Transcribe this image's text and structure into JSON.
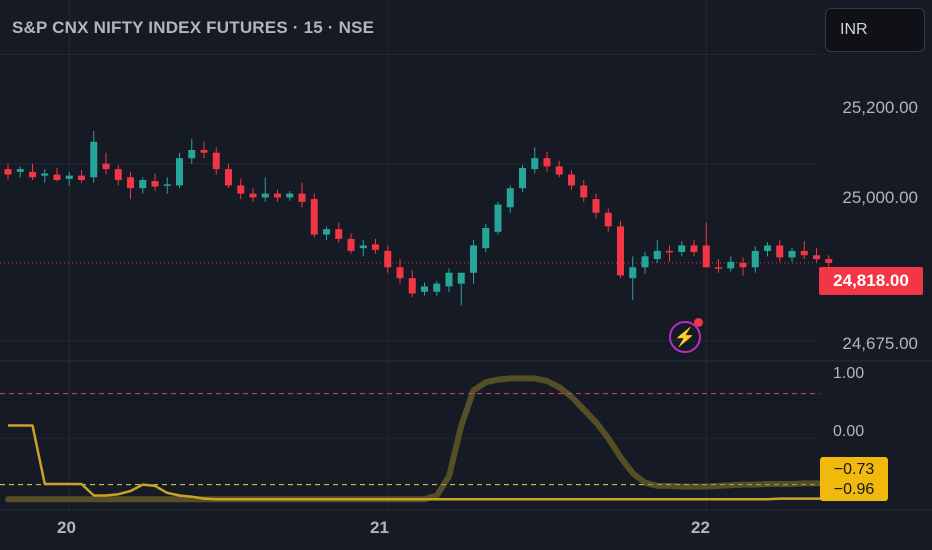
{
  "header": {
    "title": "S&P CNX NIFTY INDEX FUTURES · 15 · NSE"
  },
  "currency_button": {
    "label": "INR"
  },
  "price_axis": {
    "labels": [
      "25,200.00",
      "25,000.00",
      "24,675.00"
    ]
  },
  "last_price": {
    "label": "24,818.00",
    "value": 24818
  },
  "indicator_axis": {
    "labels": [
      "1.00",
      "0.00"
    ]
  },
  "indicator_tag": {
    "value": "−0.73",
    "value2": "−0.96"
  },
  "time_axis": {
    "labels": [
      "20",
      "21",
      "22"
    ]
  },
  "colors": {
    "background": "#161a25",
    "up": "#26a69a",
    "down": "#f23645",
    "indicator": "#f0b90b",
    "alert": "#b62cc5"
  },
  "chart_data": {
    "type": "candlestick",
    "title": "S&P CNX NIFTY INDEX FUTURES · 15 · NSE",
    "price_range": [
      24640,
      25300
    ],
    "last_price": 24818,
    "x_tick_labels": [
      "20",
      "21",
      "22"
    ],
    "y_tick_labels": [
      "25,200.00",
      "25,000.00",
      "24,675.00"
    ],
    "candles": [
      [
        24990,
        25000,
        24970,
        24980
      ],
      [
        24985,
        24995,
        24975,
        24990
      ],
      [
        24985,
        25000,
        24970,
        24975
      ],
      [
        24978,
        24990,
        24965,
        24982
      ],
      [
        24980,
        24992,
        24968,
        24970
      ],
      [
        24972,
        24985,
        24960,
        24978
      ],
      [
        24978,
        24988,
        24965,
        24970
      ],
      [
        24975,
        25060,
        24965,
        25040
      ],
      [
        25000,
        25020,
        24980,
        24990
      ],
      [
        24990,
        24998,
        24960,
        24970
      ],
      [
        24975,
        24985,
        24935,
        24955
      ],
      [
        24955,
        24975,
        24945,
        24970
      ],
      [
        24968,
        24982,
        24950,
        24958
      ],
      [
        24960,
        24975,
        24945,
        24962
      ],
      [
        24960,
        25020,
        24955,
        25010
      ],
      [
        25010,
        25045,
        25000,
        25025
      ],
      [
        25025,
        25040,
        25010,
        25020
      ],
      [
        25020,
        25030,
        24980,
        24990
      ],
      [
        24990,
        25000,
        24955,
        24960
      ],
      [
        24960,
        24972,
        24935,
        24945
      ],
      [
        24945,
        24955,
        24930,
        24938
      ],
      [
        24938,
        24975,
        24930,
        24945
      ],
      [
        24945,
        24952,
        24930,
        24938
      ],
      [
        24938,
        24950,
        24932,
        24945
      ],
      [
        24945,
        24965,
        24920,
        24930
      ],
      [
        24935,
        24945,
        24865,
        24870
      ],
      [
        24870,
        24885,
        24860,
        24880
      ],
      [
        24880,
        24892,
        24855,
        24862
      ],
      [
        24862,
        24872,
        24835,
        24840
      ],
      [
        24845,
        24860,
        24830,
        24850
      ],
      [
        24852,
        24862,
        24835,
        24842
      ],
      [
        24840,
        24850,
        24800,
        24810
      ],
      [
        24810,
        24825,
        24780,
        24790
      ],
      [
        24790,
        24805,
        24755,
        24762
      ],
      [
        24765,
        24782,
        24758,
        24775
      ],
      [
        24765,
        24785,
        24758,
        24780
      ],
      [
        24775,
        24808,
        24765,
        24800
      ],
      [
        24780,
        24800,
        24740,
        24800
      ],
      [
        24800,
        24860,
        24780,
        24850
      ],
      [
        24845,
        24890,
        24838,
        24882
      ],
      [
        24875,
        24930,
        24870,
        24925
      ],
      [
        24920,
        24960,
        24910,
        24955
      ],
      [
        24955,
        24998,
        24948,
        24992
      ],
      [
        24990,
        25030,
        24982,
        25010
      ],
      [
        25010,
        25022,
        24985,
        24995
      ],
      [
        24995,
        25005,
        24975,
        24980
      ],
      [
        24980,
        24988,
        24952,
        24960
      ],
      [
        24960,
        24970,
        24930,
        24938
      ],
      [
        24935,
        24945,
        24900,
        24910
      ],
      [
        24910,
        24918,
        24875,
        24885
      ],
      [
        24885,
        24895,
        24790,
        24795
      ],
      [
        24790,
        24830,
        24750,
        24810
      ],
      [
        24810,
        24838,
        24798,
        24830
      ],
      [
        24825,
        24860,
        24818,
        24840
      ],
      [
        24840,
        24850,
        24820,
        24838
      ],
      [
        24838,
        24858,
        24830,
        24850
      ],
      [
        24850,
        24860,
        24830,
        24838
      ],
      [
        24850,
        24892,
        24810,
        24810
      ],
      [
        24810,
        24825,
        24800,
        24808
      ],
      [
        24808,
        24830,
        24802,
        24820
      ],
      [
        24818,
        24828,
        24795,
        24810
      ],
      [
        24810,
        24848,
        24800,
        24840
      ],
      [
        24840,
        24856,
        24830,
        24850
      ],
      [
        24850,
        24860,
        24820,
        24828
      ],
      [
        24828,
        24845,
        24820,
        24840
      ],
      [
        24840,
        24858,
        24825,
        24832
      ],
      [
        24832,
        24845,
        24820,
        24825
      ],
      [
        24825,
        24832,
        24810,
        24818
      ]
    ],
    "x_index_of_ticks": [
      5,
      31,
      57
    ],
    "indicator": {
      "range": [
        -1.05,
        1.15
      ],
      "overbought": 0.7,
      "oversold": -0.73,
      "series": [
        {
          "values": [
            0.2,
            0.2,
            0.2,
            -0.72,
            -0.72,
            -0.72,
            -0.72,
            -0.9,
            -0.9,
            -0.88,
            -0.83,
            -0.73,
            -0.75,
            -0.86,
            -0.9,
            -0.92,
            -0.95,
            -0.96,
            -0.96,
            -0.96,
            -0.96,
            -0.96,
            -0.96,
            -0.96,
            -0.96,
            -0.96,
            -0.96,
            -0.96,
            -0.96,
            -0.96,
            -0.96,
            -0.96,
            -0.96,
            -0.96,
            -0.96,
            -0.96,
            -0.96,
            -0.96,
            -0.96,
            -0.96,
            -0.96,
            -0.96,
            -0.96,
            -0.96,
            -0.96,
            -0.96,
            -0.96,
            -0.96,
            -0.96,
            -0.96,
            -0.96,
            -0.96,
            -0.96,
            -0.96,
            -0.96,
            -0.96,
            -0.96,
            -0.96,
            -0.96,
            -0.96,
            -0.96,
            -0.96,
            -0.96,
            -0.95,
            -0.95,
            -0.95,
            -0.95,
            -0.95
          ]
        },
        {
          "values": [
            -0.96,
            -0.96,
            -0.96,
            -0.96,
            -0.96,
            -0.96,
            -0.96,
            -0.96,
            -0.96,
            -0.96,
            -0.96,
            -0.96,
            -0.96,
            -0.96,
            -0.96,
            -0.96,
            -0.96,
            -0.96,
            -0.96,
            -0.96,
            -0.96,
            -0.96,
            -0.96,
            -0.96,
            -0.96,
            -0.96,
            -0.96,
            -0.96,
            -0.96,
            -0.96,
            -0.96,
            -0.96,
            -0.96,
            -0.96,
            -0.96,
            -0.9,
            -0.6,
            0.2,
            0.75,
            0.88,
            0.92,
            0.94,
            0.94,
            0.94,
            0.9,
            0.8,
            0.65,
            0.45,
            0.25,
            0.0,
            -0.3,
            -0.55,
            -0.7,
            -0.75,
            -0.75,
            -0.76,
            -0.76,
            -0.76,
            -0.75,
            -0.74,
            -0.73,
            -0.73,
            -0.72,
            -0.72,
            -0.72,
            -0.71,
            -0.71,
            -0.71
          ]
        }
      ]
    }
  }
}
